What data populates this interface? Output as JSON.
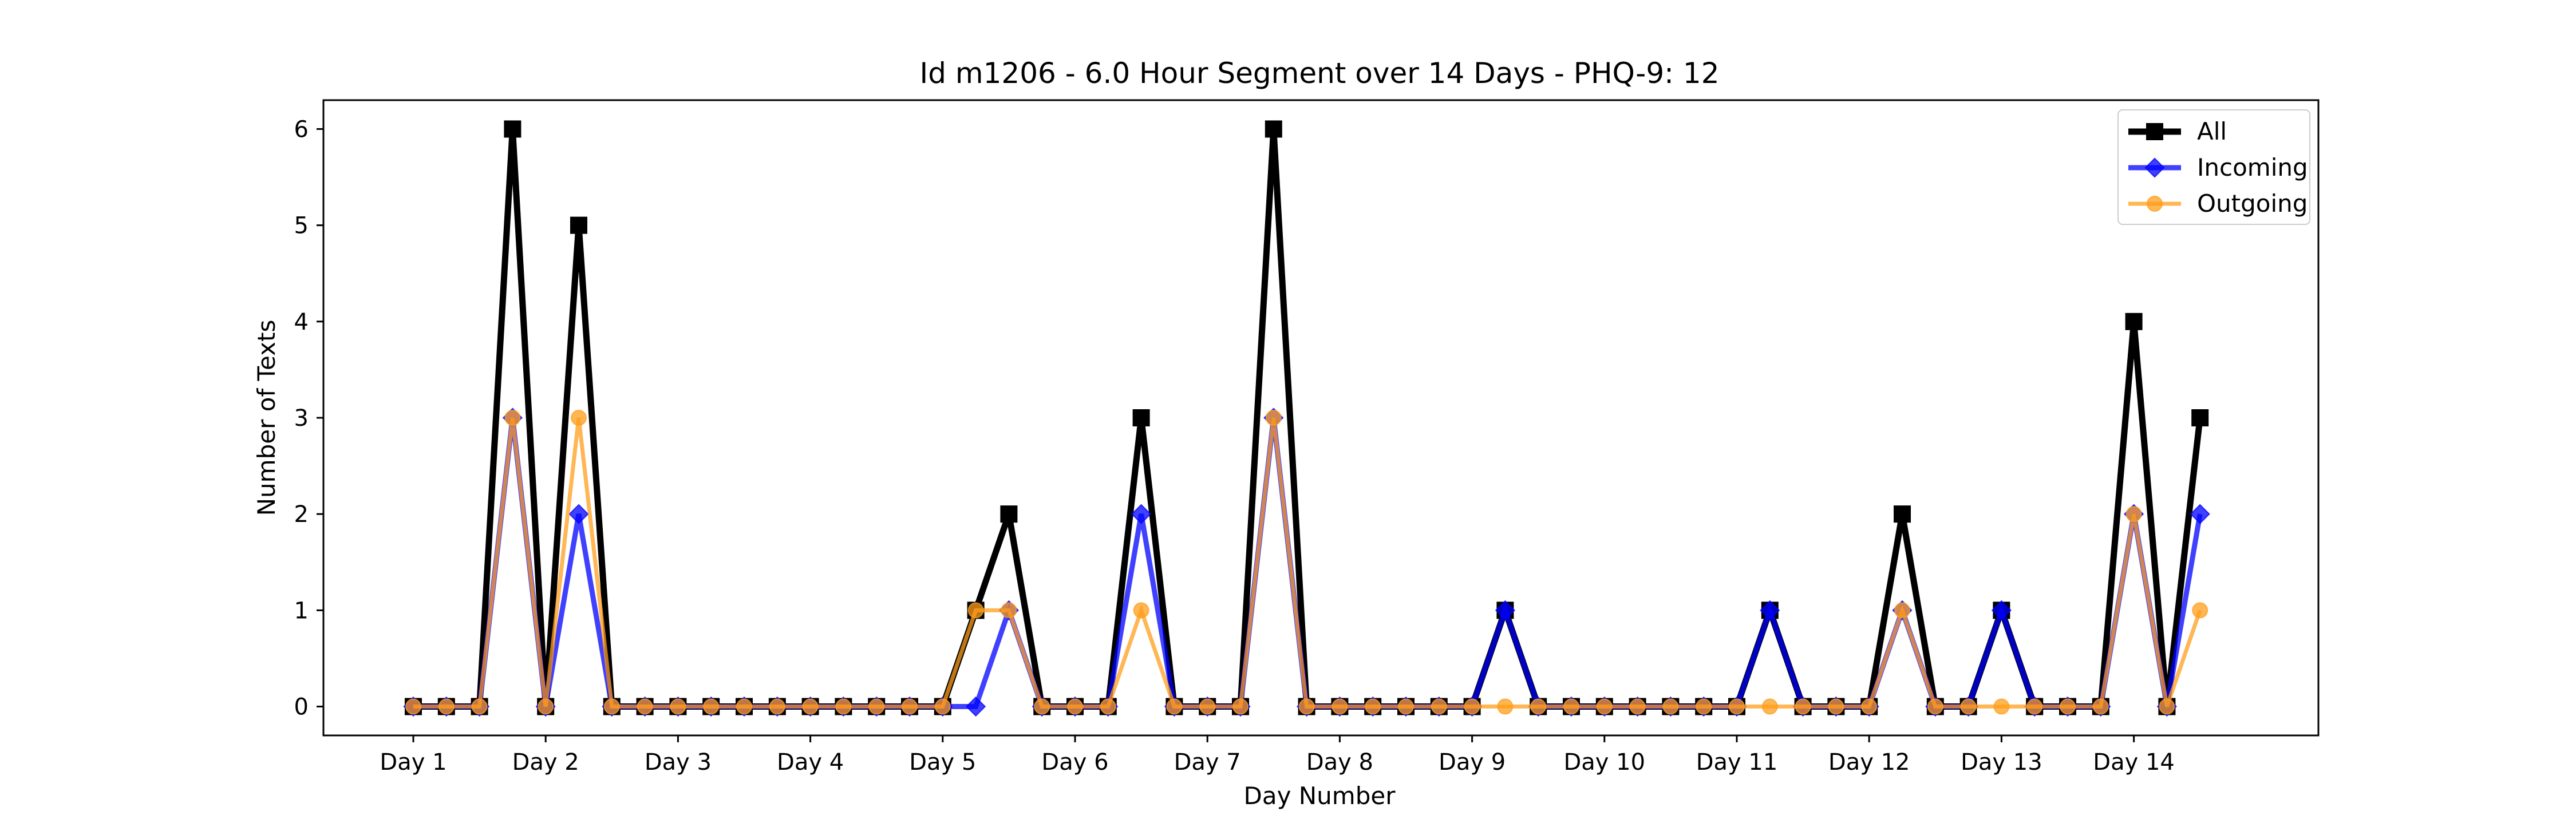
{
  "chart_data": {
    "type": "line",
    "title": "Id m1206 - 6.0 Hour Segment over 14 Days - PHQ-9: 12",
    "xlabel": "Day Number",
    "ylabel": "Number of Texts",
    "xtick_labels": [
      "Day 1",
      "Day 2",
      "Day 3",
      "Day 4",
      "Day 5",
      "Day 6",
      "Day 7",
      "Day 8",
      "Day 9",
      "Day 10",
      "Day 11",
      "Day 12",
      "Day 13",
      "Day 14"
    ],
    "ytick_labels": [
      "0",
      "1",
      "2",
      "3",
      "4",
      "5",
      "6"
    ],
    "ylim": [
      -0.3,
      6.3
    ],
    "segments_per_day": 4,
    "grid": false,
    "legend_position": "top-right",
    "series": [
      {
        "name": "All",
        "color": "#000000",
        "marker": "square",
        "values": [
          0,
          0,
          0,
          6,
          0,
          5,
          0,
          0,
          0,
          0,
          0,
          0,
          0,
          0,
          0,
          0,
          0,
          1,
          2,
          0,
          0,
          0,
          3,
          0,
          0,
          0,
          6,
          0,
          0,
          0,
          0,
          0,
          0,
          1,
          0,
          0,
          0,
          0,
          0,
          0,
          0,
          1,
          0,
          0,
          0,
          2,
          0,
          0,
          1,
          0,
          0,
          0,
          4,
          0,
          3
        ]
      },
      {
        "name": "Incoming",
        "color": "#0000ff",
        "marker": "diamond",
        "values": [
          0,
          0,
          0,
          3,
          0,
          2,
          0,
          0,
          0,
          0,
          0,
          0,
          0,
          0,
          0,
          0,
          0,
          0,
          1,
          0,
          0,
          0,
          2,
          0,
          0,
          0,
          3,
          0,
          0,
          0,
          0,
          0,
          0,
          1,
          0,
          0,
          0,
          0,
          0,
          0,
          0,
          1,
          0,
          0,
          0,
          1,
          0,
          0,
          1,
          0,
          0,
          0,
          2,
          0,
          2
        ]
      },
      {
        "name": "Outgoing",
        "color": "#ff9e1b",
        "marker": "circle",
        "values": [
          0,
          0,
          0,
          3,
          0,
          3,
          0,
          0,
          0,
          0,
          0,
          0,
          0,
          0,
          0,
          0,
          0,
          1,
          1,
          0,
          0,
          0,
          1,
          0,
          0,
          0,
          3,
          0,
          0,
          0,
          0,
          0,
          0,
          0,
          0,
          0,
          0,
          0,
          0,
          0,
          0,
          0,
          0,
          0,
          0,
          1,
          0,
          0,
          0,
          0,
          0,
          0,
          2,
          0,
          1
        ]
      }
    ]
  }
}
